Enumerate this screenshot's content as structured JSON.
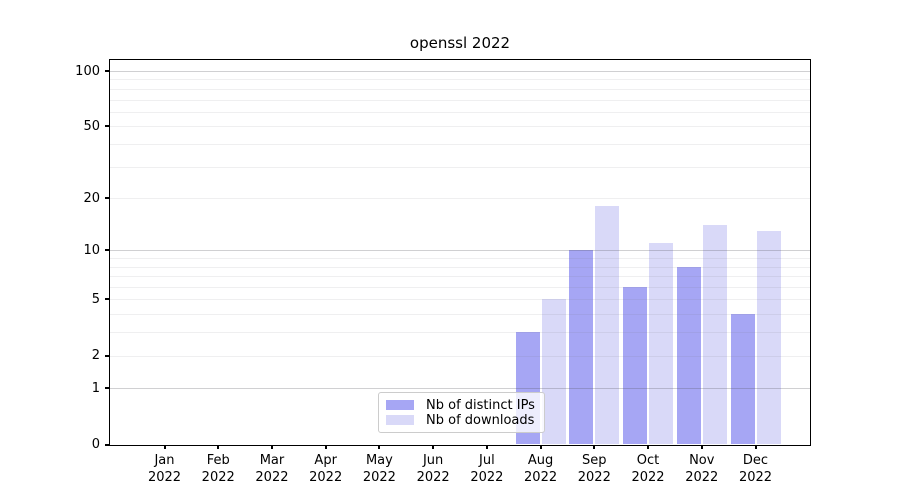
{
  "chart_data": {
    "type": "bar",
    "title": "openssl 2022",
    "categories": [
      "Jan",
      "Feb",
      "Mar",
      "Apr",
      "May",
      "Jun",
      "Jul",
      "Aug",
      "Sep",
      "Oct",
      "Nov",
      "Dec"
    ],
    "year_label": "2022",
    "series": [
      {
        "name": "Nb of distinct IPs",
        "color": "#a6a6f4",
        "values": [
          0,
          0,
          0,
          0,
          0,
          0,
          0,
          3,
          10,
          6,
          8,
          4
        ]
      },
      {
        "name": "Nb of downloads",
        "color": "#d9d9f8",
        "values": [
          0,
          0,
          0,
          0,
          0,
          0,
          0,
          5,
          18,
          11,
          14,
          13
        ]
      }
    ],
    "yscale": "log1p",
    "ylim": [
      0,
      100
    ],
    "yticks": [
      0,
      1,
      2,
      5,
      10,
      20,
      50,
      100
    ],
    "grid": true,
    "grid_minor_values": [
      2,
      3,
      4,
      5,
      6,
      7,
      8,
      9,
      20,
      30,
      40,
      50,
      60,
      70,
      80,
      90
    ],
    "grid_major_values": [
      1,
      10,
      100
    ],
    "legend_position": "lower center-left inside plot"
  }
}
